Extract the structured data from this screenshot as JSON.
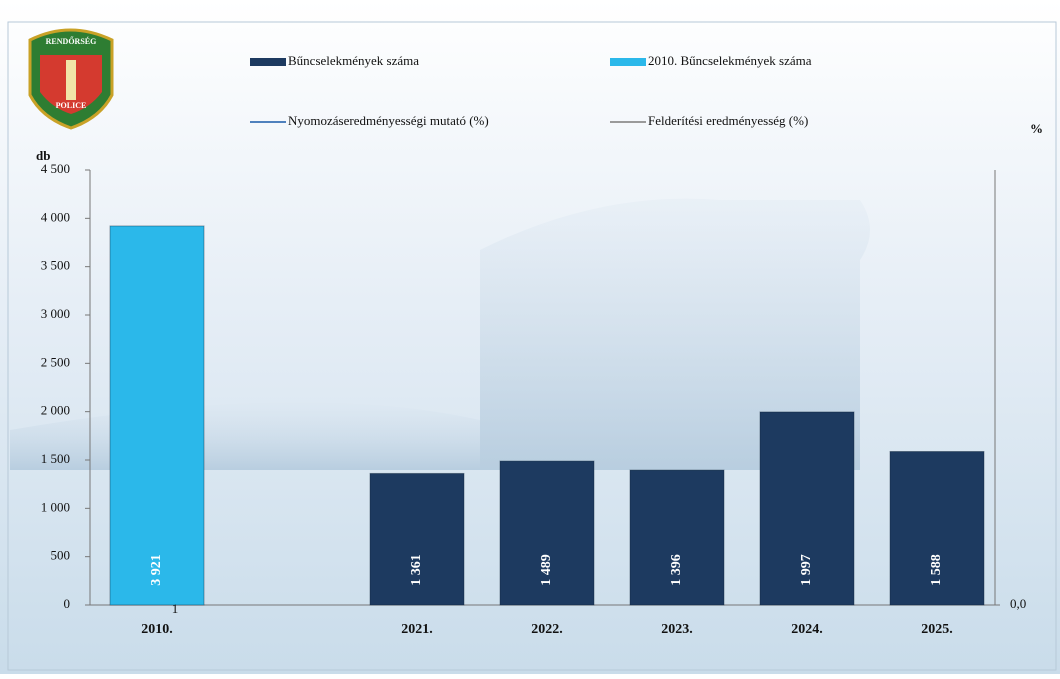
{
  "logo": {
    "top": "RENDŐRSÉG",
    "bottom": "POLICE"
  },
  "chart_data": {
    "type": "bar",
    "y_label": "db",
    "y2_label": "%",
    "categories": [
      "2010.",
      null,
      "2021.",
      "2022.",
      "2023.",
      "2024.",
      "2025."
    ],
    "series": [
      {
        "name": "Bűncselekmények száma",
        "type": "bar",
        "color": "#1d3a60",
        "values": [
          null,
          null,
          1361,
          1489,
          1396,
          1997,
          1588
        ],
        "value_labels": [
          null,
          null,
          "1 361",
          "1 489",
          "1 396",
          "1 997",
          "1 588"
        ]
      },
      {
        "name": "2010. Bűncselekmények száma",
        "type": "bar",
        "color": "#2bb8ea",
        "values": [
          3921,
          null,
          null,
          null,
          null,
          null,
          null
        ],
        "value_labels": [
          "3 921",
          null,
          null,
          null,
          null,
          null,
          null
        ]
      },
      {
        "name": "Nyomozáseredményességi mutató (%)",
        "type": "line",
        "axis": "y2",
        "color": "#4f81bd",
        "values": [
          null,
          null,
          null,
          null,
          null,
          null,
          null
        ]
      },
      {
        "name": "Felderítési eredményesség (%)",
        "type": "line",
        "axis": "y2",
        "color": "#9a9a9a",
        "values": [
          null,
          null,
          null,
          null,
          null,
          null,
          null
        ]
      }
    ],
    "annotations": [
      "1"
    ],
    "ylim": [
      0,
      4500
    ],
    "yticks": [
      0,
      500,
      {
        "value": 1000,
        "label": "1 000"
      },
      {
        "value": 1500,
        "label": "1 500"
      },
      {
        "value": 2000,
        "label": "2 000"
      },
      {
        "value": 2500,
        "label": "2 500"
      },
      {
        "value": 3000,
        "label": "3 000"
      },
      {
        "value": 3500,
        "label": "3 500"
      },
      {
        "value": 4000,
        "label": "4 000"
      },
      {
        "value": 4500,
        "label": "4 500"
      }
    ],
    "y2lim": [
      0,
      100
    ],
    "y2ticks": [
      {
        "value": 0,
        "label": "0,0"
      }
    ]
  }
}
